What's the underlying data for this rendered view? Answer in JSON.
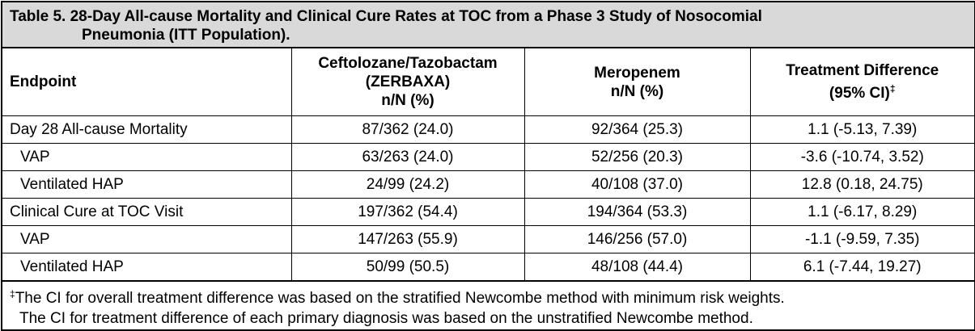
{
  "table": {
    "title_line1": "Table 5. 28-Day All-cause Mortality and Clinical Cure Rates at TOC from a Phase 3 Study of Nosocomial",
    "title_line2": "Pneumonia (ITT Population).",
    "headers": {
      "endpoint": "Endpoint",
      "ceftolozane_line1": "Ceftolozane/Tazobactam",
      "ceftolozane_line2": "(ZERBAXA)",
      "ceftolozane_line3": "n/N (%)",
      "meropenem_line1": "Meropenem",
      "meropenem_line2": "n/N (%)",
      "difference_line1": "Treatment Difference",
      "difference_line2": "(95% CI)",
      "difference_marker": "‡"
    },
    "rows": [
      {
        "endpoint": "Day 28 All-cause Mortality",
        "ceftolozane": "87/362 (24.0)",
        "meropenem": "92/364 (25.3)",
        "difference": "1.1 (-5.13, 7.39)"
      },
      {
        "endpoint": "VAP",
        "ceftolozane": "63/263 (24.0)",
        "meropenem": "52/256 (20.3)",
        "difference": "-3.6 (-10.74, 3.52)"
      },
      {
        "endpoint": "Ventilated HAP",
        "ceftolozane": "24/99 (24.2)",
        "meropenem": "40/108 (37.0)",
        "difference": "12.8 (0.18, 24.75)"
      },
      {
        "endpoint": "Clinical Cure at TOC Visit",
        "ceftolozane": "197/362 (54.4)",
        "meropenem": "194/364 (53.3)",
        "difference": "1.1 (-6.17, 8.29)"
      },
      {
        "endpoint": "VAP",
        "ceftolozane": "147/263 (55.9)",
        "meropenem": "146/256 (57.0)",
        "difference": "-1.1 (-9.59, 7.35)"
      },
      {
        "endpoint": "Ventilated HAP",
        "ceftolozane": "50/99 (50.5)",
        "meropenem": "48/108 (44.4)",
        "difference": "6.1 (-7.44, 19.27)"
      }
    ],
    "footnote_marker": "‡",
    "footnote_line1": "The CI for overall treatment difference was based on the stratified Newcombe method with minimum risk weights.",
    "footnote_line2": "The CI for treatment difference of each primary diagnosis was based on the unstratified Newcombe method."
  }
}
